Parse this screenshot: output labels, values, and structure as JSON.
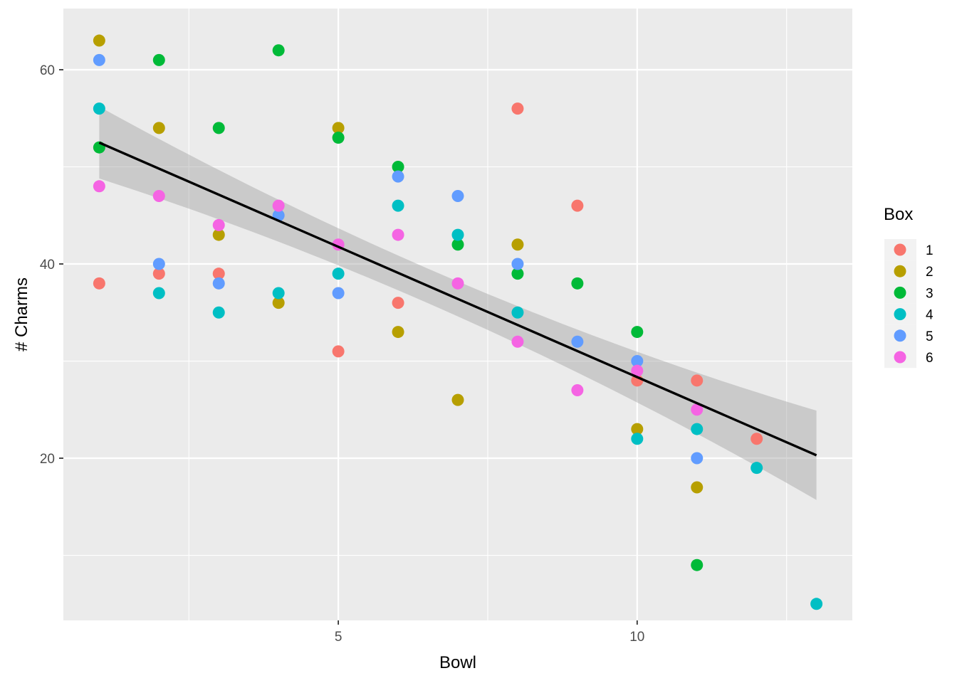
{
  "chart_data": {
    "type": "scatter",
    "title": "",
    "xlabel": "Bowl",
    "ylabel": "# Charms",
    "xlim": [
      0.4,
      13.6
    ],
    "ylim": [
      3.3,
      66.3
    ],
    "x_ticks": [
      5,
      10
    ],
    "x_minor": [
      2.5,
      7.5,
      12.5
    ],
    "y_ticks": [
      20,
      40,
      60
    ],
    "y_minor": [
      10,
      30,
      50
    ],
    "grid": true,
    "legend": {
      "title": "Box",
      "position": "right",
      "labels": [
        "1",
        "2",
        "3",
        "4",
        "5",
        "6"
      ]
    },
    "series": [
      {
        "name": "1",
        "color": "#F8766D",
        "x": [
          1,
          2,
          3,
          5,
          6,
          8,
          9,
          10,
          11,
          12
        ],
        "y": [
          38,
          39,
          39,
          31,
          36,
          56,
          46,
          28,
          28,
          22
        ]
      },
      {
        "name": "2",
        "color": "#B79F00",
        "x": [
          1,
          2,
          3,
          4,
          5,
          6,
          7,
          8,
          10,
          11
        ],
        "y": [
          63,
          54,
          43,
          36,
          54,
          33,
          26,
          42,
          23,
          17
        ]
      },
      {
        "name": "3",
        "color": "#00BA38",
        "x": [
          1,
          2,
          3,
          4,
          5,
          6,
          7,
          8,
          9,
          10,
          11
        ],
        "y": [
          52,
          61,
          54,
          62,
          53,
          50,
          42,
          39,
          38,
          33,
          9
        ]
      },
      {
        "name": "4",
        "color": "#00BFC4",
        "x": [
          1,
          2,
          3,
          4,
          5,
          6,
          7,
          8,
          10,
          11,
          12,
          13
        ],
        "y": [
          56,
          37,
          35,
          37,
          39,
          46,
          43,
          35,
          22,
          23,
          19,
          5
        ]
      },
      {
        "name": "5",
        "color": "#619CFF",
        "x": [
          1,
          2,
          3,
          4,
          5,
          6,
          7,
          8,
          9,
          10,
          11
        ],
        "y": [
          61,
          40,
          38,
          45,
          37,
          49,
          47,
          40,
          32,
          30,
          20
        ]
      },
      {
        "name": "6",
        "color": "#F564E3",
        "x": [
          1,
          2,
          3,
          4,
          5,
          6,
          7,
          8,
          9,
          10,
          11
        ],
        "y": [
          48,
          47,
          44,
          46,
          42,
          43,
          38,
          32,
          27,
          29,
          25
        ]
      }
    ],
    "regression": {
      "method": "lm",
      "color": "#000000",
      "ribbon_color": "#999999",
      "x_range": [
        1,
        13
      ],
      "line": [
        52.5,
        20.3
      ],
      "band_upper": [
        56.2,
        24.9
      ],
      "band_lower": [
        48.9,
        15.9
      ],
      "band_mid_x": 7,
      "band_mid_halfwidth": 1.8
    }
  }
}
